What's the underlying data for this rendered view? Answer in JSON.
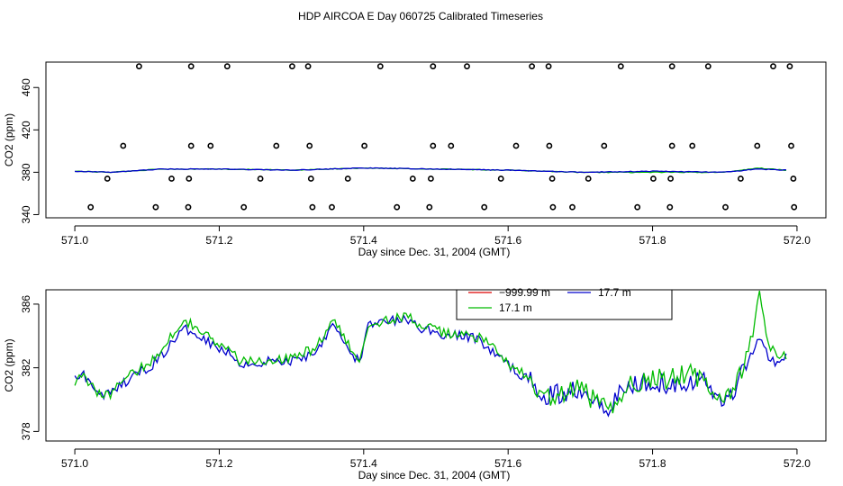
{
  "title": "HDP AIRCOA E  Day 060725  Calibrated Timeseries",
  "chart_data": [
    {
      "type": "scatter",
      "xlabel": "Day since Dec. 31, 2004 (GMT)",
      "ylabel": "CO2 (ppm)",
      "xlim": [
        570.96,
        572.04
      ],
      "ylim": [
        337,
        484
      ],
      "x_ticks": [
        571.0,
        571.2,
        571.4,
        571.6,
        571.8,
        572.0
      ],
      "x_tick_labels": [
        "571.0",
        "571.2",
        "571.4",
        "571.6",
        "571.8",
        "572.0"
      ],
      "y_ticks": [
        340,
        380,
        420,
        460
      ],
      "y_tick_labels": [
        "340",
        "380",
        "420",
        "460"
      ],
      "grid": false,
      "circle_points": [
        {
          "x": 571.089,
          "y": 480
        },
        {
          "x": 571.161,
          "y": 480
        },
        {
          "x": 571.211,
          "y": 480
        },
        {
          "x": 571.301,
          "y": 480
        },
        {
          "x": 571.323,
          "y": 480
        },
        {
          "x": 571.423,
          "y": 480
        },
        {
          "x": 571.496,
          "y": 480
        },
        {
          "x": 571.543,
          "y": 480
        },
        {
          "x": 571.633,
          "y": 480
        },
        {
          "x": 571.656,
          "y": 480
        },
        {
          "x": 571.756,
          "y": 480
        },
        {
          "x": 571.827,
          "y": 480
        },
        {
          "x": 571.877,
          "y": 480
        },
        {
          "x": 571.967,
          "y": 480
        },
        {
          "x": 571.99,
          "y": 480
        },
        {
          "x": 571.067,
          "y": 405
        },
        {
          "x": 571.161,
          "y": 405
        },
        {
          "x": 571.188,
          "y": 405
        },
        {
          "x": 571.279,
          "y": 405
        },
        {
          "x": 571.325,
          "y": 405
        },
        {
          "x": 571.401,
          "y": 405
        },
        {
          "x": 571.496,
          "y": 405
        },
        {
          "x": 571.521,
          "y": 405
        },
        {
          "x": 571.611,
          "y": 405
        },
        {
          "x": 571.657,
          "y": 405
        },
        {
          "x": 571.733,
          "y": 405
        },
        {
          "x": 571.827,
          "y": 405
        },
        {
          "x": 571.855,
          "y": 405
        },
        {
          "x": 571.945,
          "y": 405
        },
        {
          "x": 571.992,
          "y": 405
        },
        {
          "x": 571.045,
          "y": 374
        },
        {
          "x": 571.134,
          "y": 374
        },
        {
          "x": 571.158,
          "y": 374
        },
        {
          "x": 571.257,
          "y": 374
        },
        {
          "x": 571.327,
          "y": 374
        },
        {
          "x": 571.378,
          "y": 374
        },
        {
          "x": 571.468,
          "y": 374
        },
        {
          "x": 571.493,
          "y": 374
        },
        {
          "x": 571.59,
          "y": 374
        },
        {
          "x": 571.661,
          "y": 374
        },
        {
          "x": 571.711,
          "y": 374
        },
        {
          "x": 571.801,
          "y": 374
        },
        {
          "x": 571.825,
          "y": 374
        },
        {
          "x": 571.922,
          "y": 374
        },
        {
          "x": 571.995,
          "y": 374
        },
        {
          "x": 571.022,
          "y": 347
        },
        {
          "x": 571.112,
          "y": 347
        },
        {
          "x": 571.157,
          "y": 347
        },
        {
          "x": 571.234,
          "y": 347
        },
        {
          "x": 571.329,
          "y": 347
        },
        {
          "x": 571.356,
          "y": 347
        },
        {
          "x": 571.446,
          "y": 347
        },
        {
          "x": 571.491,
          "y": 347
        },
        {
          "x": 571.567,
          "y": 347
        },
        {
          "x": 571.662,
          "y": 347
        },
        {
          "x": 571.689,
          "y": 347
        },
        {
          "x": 571.779,
          "y": 347
        },
        {
          "x": 571.824,
          "y": 347
        },
        {
          "x": 571.901,
          "y": 347
        },
        {
          "x": 571.996,
          "y": 347
        }
      ],
      "series": [
        {
          "color": "#00bb00",
          "line_x_range": [
            571.0,
            571.985
          ],
          "anchors": [
            [
              571.0,
              381
            ],
            [
              571.05,
              380
            ],
            [
              571.12,
              383
            ],
            [
              571.2,
              383
            ],
            [
              571.3,
              382
            ],
            [
              571.4,
              384
            ],
            [
              571.5,
              383
            ],
            [
              571.6,
              382
            ],
            [
              571.7,
              380
            ],
            [
              571.8,
              380
            ],
            [
              571.9,
              380
            ],
            [
              571.945,
              384
            ],
            [
              571.985,
              382
            ]
          ]
        },
        {
          "color": "#0000cc",
          "line_x_range": [
            571.0,
            571.985
          ],
          "anchors": [
            [
              571.0,
              381
            ],
            [
              571.05,
              380
            ],
            [
              571.12,
              383
            ],
            [
              571.2,
              383
            ],
            [
              571.3,
              382
            ],
            [
              571.4,
              384
            ],
            [
              571.5,
              383
            ],
            [
              571.6,
              382
            ],
            [
              571.7,
              380
            ],
            [
              571.8,
              381
            ],
            [
              571.9,
              380
            ],
            [
              571.945,
              383
            ],
            [
              571.985,
              382
            ]
          ]
        }
      ]
    },
    {
      "type": "line",
      "xlabel": "Day since Dec. 31, 2004 (GMT)",
      "ylabel": "CO2 (ppm)",
      "xlim": [
        570.96,
        572.04
      ],
      "ylim": [
        377.4,
        386.9
      ],
      "x_ticks": [
        571.0,
        571.2,
        571.4,
        571.6,
        571.8,
        572.0
      ],
      "x_tick_labels": [
        "571.0",
        "571.2",
        "571.4",
        "571.6",
        "571.8",
        "572.0"
      ],
      "y_ticks": [
        378,
        382,
        386
      ],
      "y_tick_labels": [
        "378",
        "382",
        "386"
      ],
      "grid": false,
      "legend_position": "top-center",
      "series": [
        {
          "name": "−999.99 m",
          "color": "#dd0000",
          "line_x_range": null,
          "anchors": []
        },
        {
          "name": "17.7 m",
          "color": "#0000cc",
          "line_x_range": [
            571.0,
            571.985
          ],
          "anchors": [
            [
              571.0,
              381.4
            ],
            [
              571.01,
              381.8
            ],
            [
              571.03,
              380.4
            ],
            [
              571.05,
              380.3
            ],
            [
              571.07,
              381.1
            ],
            [
              571.09,
              381.7
            ],
            [
              571.11,
              382.3
            ],
            [
              571.13,
              383.3
            ],
            [
              571.15,
              384.4
            ],
            [
              571.17,
              384.2
            ],
            [
              571.19,
              383.5
            ],
            [
              571.21,
              383.0
            ],
            [
              571.23,
              382.3
            ],
            [
              571.25,
              382.2
            ],
            [
              571.27,
              382.5
            ],
            [
              571.29,
              382.3
            ],
            [
              571.31,
              382.6
            ],
            [
              571.33,
              382.9
            ],
            [
              571.345,
              383.8
            ],
            [
              571.355,
              384.9
            ],
            [
              571.37,
              384.0
            ],
            [
              571.385,
              382.6
            ],
            [
              571.395,
              382.5
            ],
            [
              571.405,
              384.6
            ],
            [
              571.43,
              384.9
            ],
            [
              571.46,
              385.0
            ],
            [
              571.48,
              384.5
            ],
            [
              571.5,
              384.2
            ],
            [
              571.52,
              384.0
            ],
            [
              571.54,
              384.0
            ],
            [
              571.56,
              383.8
            ],
            [
              571.58,
              382.9
            ],
            [
              571.6,
              382.2
            ],
            [
              571.62,
              381.5
            ],
            [
              571.64,
              380.7
            ],
            [
              571.66,
              380.2
            ],
            [
              571.68,
              380.4
            ],
            [
              571.7,
              380.9
            ],
            [
              571.72,
              380.1
            ],
            [
              571.74,
              379.6
            ],
            [
              571.76,
              380.6
            ],
            [
              571.78,
              381.1
            ],
            [
              571.8,
              381.3
            ],
            [
              571.82,
              381.0
            ],
            [
              571.84,
              381.2
            ],
            [
              571.86,
              381.3
            ],
            [
              571.88,
              380.8
            ],
            [
              571.9,
              379.8
            ],
            [
              571.92,
              381.2
            ],
            [
              571.94,
              383.3
            ],
            [
              571.95,
              383.9
            ],
            [
              571.96,
              382.8
            ],
            [
              571.97,
              382.4
            ],
            [
              571.985,
              382.6
            ]
          ]
        },
        {
          "name": "17.1 m",
          "color": "#00bb00",
          "line_x_range": [
            571.0,
            571.985
          ],
          "anchors": [
            [
              571.0,
              381.2
            ],
            [
              571.01,
              381.6
            ],
            [
              571.03,
              380.4
            ],
            [
              571.05,
              380.4
            ],
            [
              571.07,
              381.3
            ],
            [
              571.09,
              381.9
            ],
            [
              571.11,
              382.6
            ],
            [
              571.13,
              383.8
            ],
            [
              571.15,
              385.0
            ],
            [
              571.17,
              384.6
            ],
            [
              571.19,
              383.7
            ],
            [
              571.21,
              383.2
            ],
            [
              571.23,
              382.4
            ],
            [
              571.25,
              382.4
            ],
            [
              571.27,
              382.6
            ],
            [
              571.29,
              382.5
            ],
            [
              571.31,
              382.9
            ],
            [
              571.33,
              383.1
            ],
            [
              571.345,
              384.0
            ],
            [
              571.355,
              385.0
            ],
            [
              571.37,
              384.2
            ],
            [
              571.385,
              382.8
            ],
            [
              571.395,
              382.6
            ],
            [
              571.405,
              384.7
            ],
            [
              571.43,
              385.0
            ],
            [
              571.46,
              385.2
            ],
            [
              571.48,
              384.7
            ],
            [
              571.5,
              384.3
            ],
            [
              571.52,
              384.1
            ],
            [
              571.54,
              384.1
            ],
            [
              571.56,
              383.9
            ],
            [
              571.58,
              383.2
            ],
            [
              571.6,
              382.3
            ],
            [
              571.62,
              381.6
            ],
            [
              571.64,
              380.5
            ],
            [
              571.66,
              380.0
            ],
            [
              571.68,
              380.2
            ],
            [
              571.7,
              380.9
            ],
            [
              571.72,
              379.8
            ],
            [
              571.74,
              379.3
            ],
            [
              571.76,
              380.6
            ],
            [
              571.78,
              381.2
            ],
            [
              571.8,
              381.4
            ],
            [
              571.82,
              381.2
            ],
            [
              571.84,
              381.6
            ],
            [
              571.86,
              381.5
            ],
            [
              571.88,
              380.7
            ],
            [
              571.9,
              380.0
            ],
            [
              571.92,
              381.3
            ],
            [
              571.94,
              384.4
            ],
            [
              571.948,
              386.7
            ],
            [
              571.96,
              383.4
            ],
            [
              571.97,
              382.9
            ],
            [
              571.985,
              382.8
            ]
          ]
        }
      ]
    }
  ]
}
